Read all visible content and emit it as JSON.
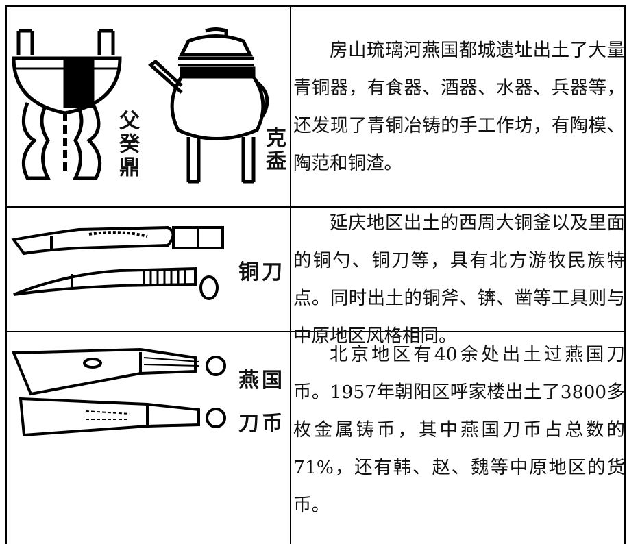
{
  "table": {
    "rows": [
      {
        "image_labels": [
          "父癸鼎",
          "克盉"
        ],
        "text": "房山琉璃河燕国都城遗址出土了大量青铜器，有食器、酒器、水器、兵器等，还发现了青铜冶铸的手工作坊，有陶模、陶范和铜渣。"
      },
      {
        "image_labels": [
          "铜刀"
        ],
        "text": "延庆地区出土的西周大铜釜以及里面的铜勺、铜刀等，具有北方游牧民族特点。同时出土的铜斧、锛、凿等工具则与中原地区风格相同。"
      },
      {
        "image_labels": [
          "燕国",
          "刀币"
        ],
        "text": "北京地区有40余处出土过燕国刀币。1957年朝阳区呼家楼出土了3800多枚金属铸币，其中燕国刀币占总数的71%，还有韩、赵、魏等中原地区的货币。"
      }
    ]
  }
}
